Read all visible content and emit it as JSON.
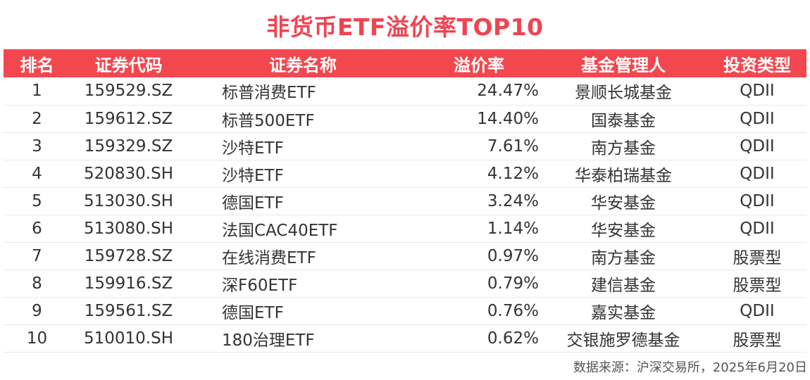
{
  "title": "非货币ETF溢价率TOP10",
  "headers": {
    "rank": "排名",
    "code": "证券代码",
    "name": "证券名称",
    "premium": "溢价率",
    "manager": "基金管理人",
    "type": "投资类型"
  },
  "rows": [
    {
      "rank": "1",
      "code": "159529.SZ",
      "name": "标普消费ETF",
      "premium": "24.47%",
      "manager": "景顺长城基金",
      "type": "QDII"
    },
    {
      "rank": "2",
      "code": "159612.SZ",
      "name": "标普500ETF",
      "premium": "14.40%",
      "manager": "国泰基金",
      "type": "QDII"
    },
    {
      "rank": "3",
      "code": "159329.SZ",
      "name": "沙特ETF",
      "premium": "7.61%",
      "manager": "南方基金",
      "type": "QDII"
    },
    {
      "rank": "4",
      "code": "520830.SH",
      "name": "沙特ETF",
      "premium": "4.12%",
      "manager": "华泰柏瑞基金",
      "type": "QDII"
    },
    {
      "rank": "5",
      "code": "513030.SH",
      "name": "德国ETF",
      "premium": "3.24%",
      "manager": "华安基金",
      "type": "QDII"
    },
    {
      "rank": "6",
      "code": "513080.SH",
      "name": "法国CAC40ETF",
      "premium": "1.14%",
      "manager": "华安基金",
      "type": "QDII"
    },
    {
      "rank": "7",
      "code": "159728.SZ",
      "name": "在线消费ETF",
      "premium": "0.97%",
      "manager": "南方基金",
      "type": "股票型"
    },
    {
      "rank": "8",
      "code": "159916.SZ",
      "name": "深F60ETF",
      "premium": "0.79%",
      "manager": "建信基金",
      "type": "股票型"
    },
    {
      "rank": "9",
      "code": "159561.SZ",
      "name": "德国ETF",
      "premium": "0.76%",
      "manager": "嘉实基金",
      "type": "QDII"
    },
    {
      "rank": "10",
      "code": "510010.SH",
      "name": "180治理ETF",
      "premium": "0.62%",
      "manager": "交银施罗德基金",
      "type": "股票型"
    }
  ],
  "source": "数据来源：沪深交易所，2025年6月20日",
  "colors": {
    "accent": "#f3474f",
    "title": "#ef4452"
  },
  "chart_data": {
    "type": "table",
    "title": "非货币ETF溢价率TOP10",
    "columns": [
      "排名",
      "证券代码",
      "证券名称",
      "溢价率",
      "基金管理人",
      "投资类型"
    ],
    "premium_values_percent": [
      24.47,
      14.4,
      7.61,
      4.12,
      3.24,
      1.14,
      0.97,
      0.79,
      0.76,
      0.62
    ]
  }
}
